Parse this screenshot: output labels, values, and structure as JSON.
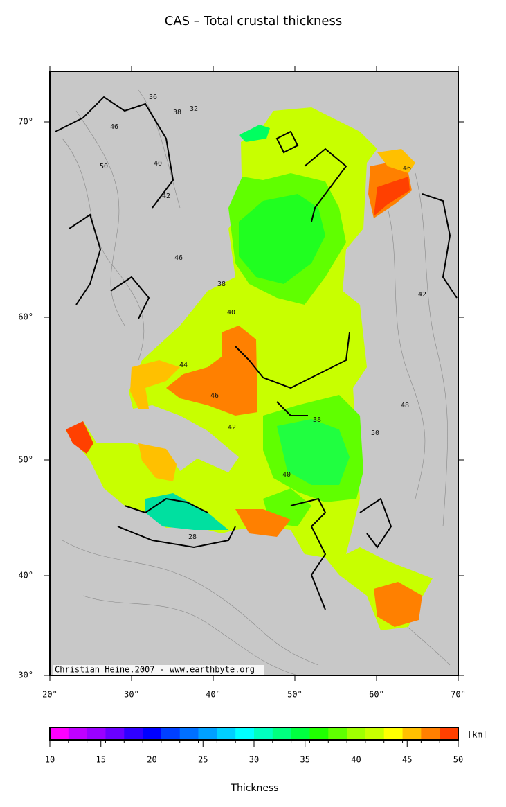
{
  "title": "CAS – Total crustal thickness",
  "map": {
    "lon_ticks": [
      "20°",
      "30°",
      "40°",
      "50°",
      "60°",
      "70°"
    ],
    "lat_ticks": [
      "70°",
      "60°",
      "50°",
      "40°",
      "30°"
    ],
    "credit": "Christian Heine,2007 - www.earthbyte.org",
    "contour_labels": [
      36,
      38,
      32,
      46,
      50,
      40,
      42,
      46,
      38,
      40,
      44,
      46,
      42,
      38,
      40,
      50,
      48,
      42,
      28,
      46
    ]
  },
  "colorbar": {
    "range": [
      10,
      50
    ],
    "ticks": [
      10,
      15,
      20,
      25,
      30,
      35,
      40,
      45,
      50
    ],
    "colors": [
      "#ff00ff",
      "#c000ff",
      "#9a00ff",
      "#6a00ff",
      "#3000ff",
      "#0000ff",
      "#0040ff",
      "#0070ff",
      "#00a0ff",
      "#00d0ff",
      "#00ffff",
      "#00ffc0",
      "#00ff80",
      "#00ff40",
      "#20ff00",
      "#60ff00",
      "#a0ff00",
      "#c8ff00",
      "#ffff00",
      "#ffc000"
    ],
    "colors_tail": [
      "#ff8000",
      "#ff4000"
    ],
    "unit": "[km]",
    "label": "Thickness"
  }
}
